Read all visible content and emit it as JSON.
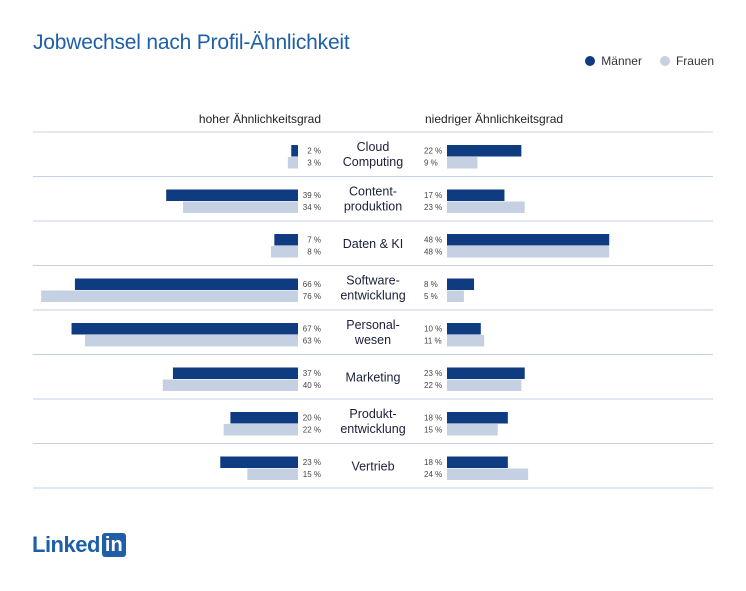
{
  "title": "Jobwechsel nach Profil-Ähnlichkeit",
  "legend": [
    {
      "name": "Männer",
      "color": "#0f3b80"
    },
    {
      "name": "Frauen",
      "color": "#c5d0e2"
    }
  ],
  "logo": {
    "text": "Linked",
    "box": "in"
  },
  "chart_data": {
    "type": "bar",
    "orientation": "horizontal-diverging",
    "left_header": "hoher Ähnlichkeitsgrad",
    "right_header": "niedriger Ähnlichkeitsgrad",
    "unit": "%",
    "categories": [
      [
        "Cloud",
        "Computing"
      ],
      [
        "Content-",
        "produktion"
      ],
      [
        "Daten & KI"
      ],
      [
        "Software-",
        "entwicklung"
      ],
      [
        "Personal-",
        "wesen"
      ],
      [
        "Marketing"
      ],
      [
        "Produkt-",
        "entwicklung"
      ],
      [
        "Vertrieb"
      ]
    ],
    "high_similarity": {
      "Männer": [
        2,
        39,
        7,
        66,
        67,
        37,
        20,
        23
      ],
      "Frauen": [
        3,
        34,
        8,
        76,
        63,
        40,
        22,
        15
      ]
    },
    "low_similarity": {
      "Männer": [
        22,
        17,
        48,
        8,
        10,
        23,
        18,
        18
      ],
      "Frauen": [
        9,
        23,
        48,
        5,
        11,
        22,
        15,
        24
      ]
    },
    "series_colors": {
      "Männer": "#0f3b80",
      "Frauen": "#c5d0e2"
    },
    "grid": "horizontal separators"
  }
}
